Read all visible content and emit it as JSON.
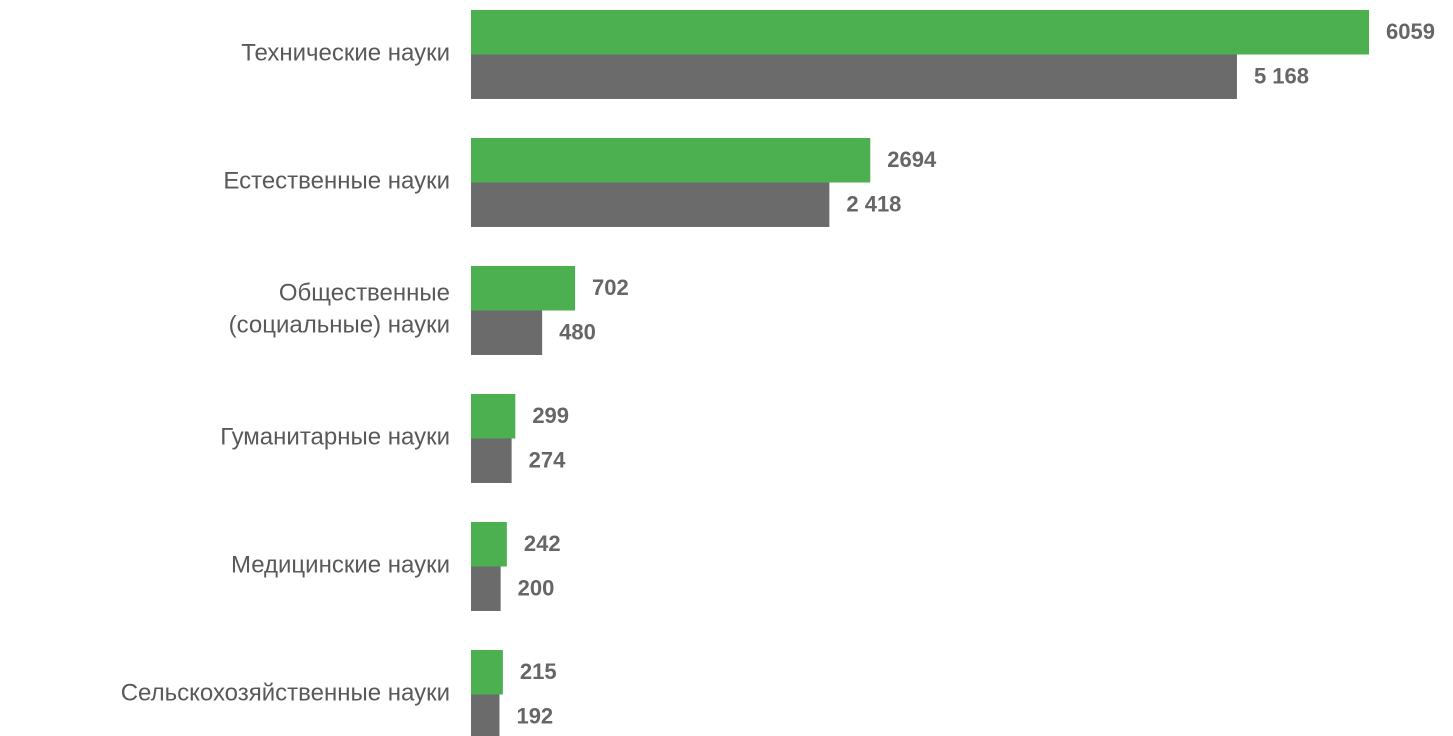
{
  "chart_data": {
    "type": "barh",
    "categories": [
      "Технические науки",
      "Естественные науки",
      "Общественные\n(социальные) науки",
      "Гуманитарные науки",
      "Медицинские науки",
      "Сельскохозяйственные науки"
    ],
    "series": [
      {
        "color": "#4caf50",
        "values": [
          6059,
          2694,
          702,
          299,
          242,
          215
        ]
      },
      {
        "color": "#6b6b6b",
        "values": [
          5168,
          2418,
          480,
          274,
          200,
          192
        ],
        "value_labels": [
          "5 168",
          "2 418",
          "480",
          "274",
          "200",
          "192"
        ]
      }
    ]
  }
}
